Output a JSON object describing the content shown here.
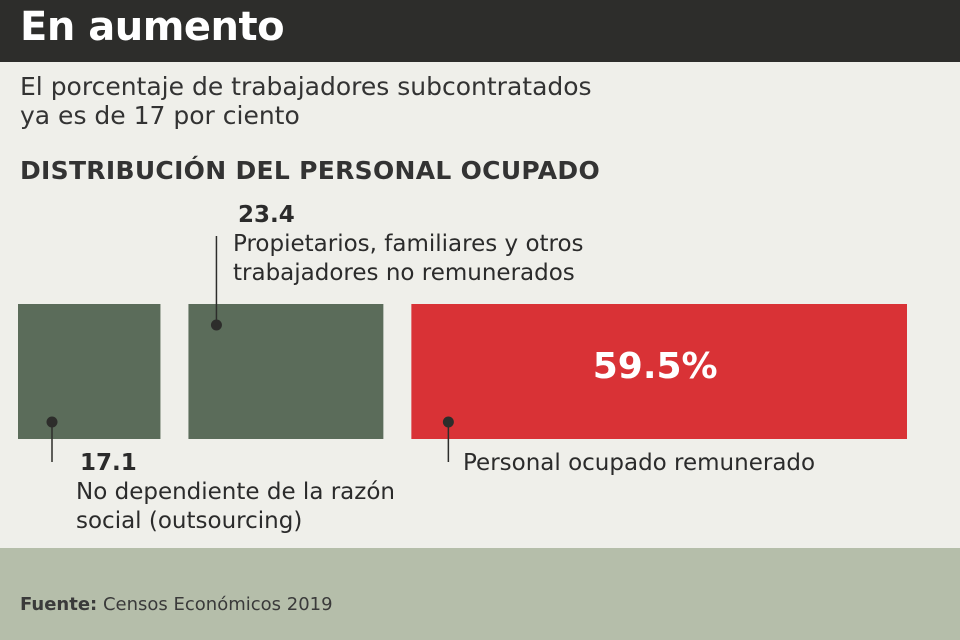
{
  "header": {
    "title": "En aumento",
    "subtitle_lines": [
      "El porcentaje de trabajadores subcontratados",
      "ya es de 17 por ciento"
    ]
  },
  "section_title": "DISTRIBUCIÓN DEL PERSONAL OCUPADO",
  "chart_data": {
    "type": "bar",
    "title": "DISTRIBUCIÓN DEL PERSONAL OCUPADO",
    "unit": "%",
    "categories": [
      "No dependiente de la razón social (outsourcing)",
      "Propietarios, familiares y otros trabajadores no remunerados",
      "Personal ocupado remunerado"
    ],
    "values": [
      17.1,
      23.4,
      59.5
    ],
    "value_labels": [
      "17.1",
      "23.4",
      "59.5%"
    ],
    "label_lines": [
      [
        "No dependiente de la razón",
        "social (outsourcing)"
      ],
      [
        "Propietarios, familiares y otros",
        "trabajadores no remunerados"
      ],
      [
        "Personal ocupado remunerado"
      ]
    ],
    "colors": [
      "#5b6c5a",
      "#5b6c5a",
      "#d93236"
    ]
  },
  "footer": {
    "source_label": "Fuente:",
    "source_text": "Censos Económicos 2019"
  }
}
